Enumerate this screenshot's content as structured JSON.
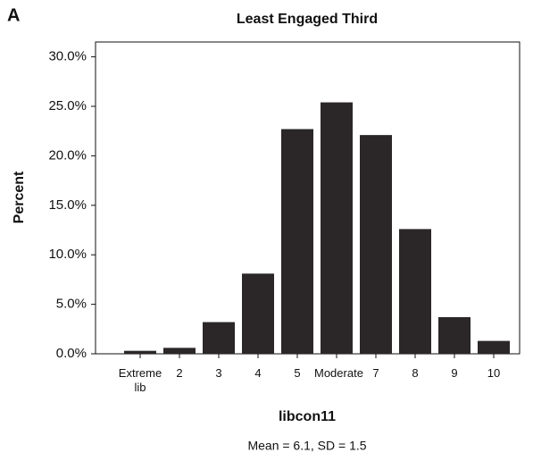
{
  "chart_data": {
    "type": "bar",
    "panel_label": "A",
    "title": "Least Engaged Third",
    "x_label": "libcon11",
    "subtitle": "Mean = 6.1, SD = 1.5",
    "y_label": "Percent",
    "categories": [
      "Extreme lib",
      "2",
      "3",
      "4",
      "5",
      "Moderate",
      "7",
      "8",
      "9",
      "10"
    ],
    "values": [
      0.3,
      0.6,
      3.2,
      8.1,
      22.7,
      25.4,
      22.1,
      12.6,
      3.7,
      1.3
    ],
    "color": "#2b2627",
    "ylim": [
      0,
      31.5
    ],
    "yticks": [
      {
        "value": 0,
        "label": "0.0%"
      },
      {
        "value": 5,
        "label": "5.0%"
      },
      {
        "value": 10,
        "label": "10.0%"
      },
      {
        "value": 15,
        "label": "15.0%"
      },
      {
        "value": 20,
        "label": "20.0%"
      },
      {
        "value": 25,
        "label": "25.0%"
      },
      {
        "value": 30,
        "label": "30.0%"
      }
    ],
    "grid": false
  }
}
